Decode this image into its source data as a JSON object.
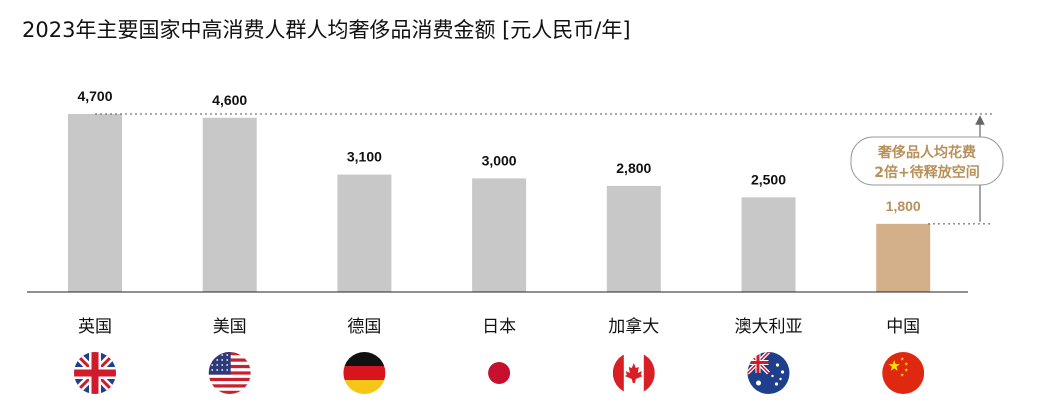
{
  "title": "2023年主要国家中高消费人群人均奢侈品消费金额 [元人民币/年]",
  "chart_data": {
    "type": "bar",
    "categories": [
      "英国",
      "美国",
      "德国",
      "日本",
      "加拿大",
      "澳大利亚",
      "中国"
    ],
    "values": [
      4700,
      4600,
      3100,
      3000,
      2800,
      2500,
      1800
    ],
    "value_labels": [
      "4,700",
      "4,600",
      "3,100",
      "3,000",
      "2,800",
      "2,500",
      "1,800"
    ],
    "ylim": [
      0,
      5000
    ],
    "grid": false,
    "colors": {
      "bar": "#c8c8c8",
      "highlight_bar": "#d4b08a",
      "highlight_label": "#b8905a",
      "value_label": "#111111"
    },
    "highlight_index": 6,
    "flags": [
      "uk-flag-icon",
      "us-flag-icon",
      "germany-flag-icon",
      "japan-flag-icon",
      "canada-flag-icon",
      "australia-flag-icon",
      "china-flag-icon"
    ],
    "annotation": {
      "line1": "奢侈品人均花费",
      "line2": "2倍+待释放空间",
      "from_value": 4700,
      "to_value": 1800
    }
  }
}
